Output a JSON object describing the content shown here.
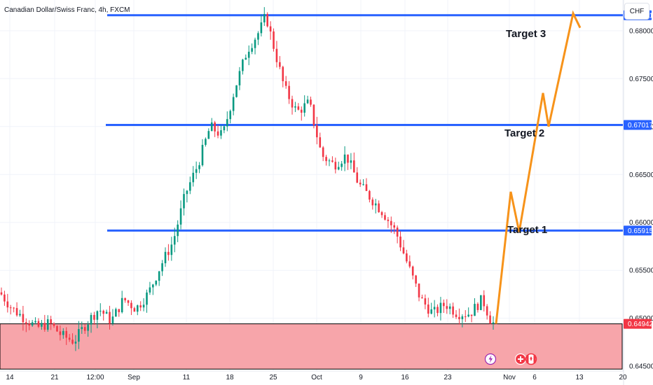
{
  "header": {
    "title": "Canadian Dollar/Swiss Franc, 4h, FXCM"
  },
  "currency_button": "CHF",
  "colors": {
    "up": "#089981",
    "down": "#f23645",
    "level": "#2962ff",
    "projection": "#f7931a",
    "zone_fill": "#f7a5aa",
    "zone_border": "#000000",
    "axis_text": "#131722",
    "grid": "#f0f3fa"
  },
  "icons": [
    "lightning-icon",
    "plus-icon",
    "canada-flag-icon"
  ],
  "chart_data": {
    "type": "candlestick",
    "title": "Canadian Dollar/Swiss Franc, 4h, FXCM",
    "ylim": [
      0.6445,
      0.6832
    ],
    "y_ticks": [
      "0.68000",
      "0.67500",
      "0.67000",
      "0.66500",
      "0.66000",
      "0.65500",
      "0.65000",
      "0.64500"
    ],
    "x_ticks": [
      "14",
      "21",
      "12:00",
      "Sep",
      "11",
      "18",
      "25",
      "Oct",
      "9",
      "16",
      "23",
      "Nov",
      "6",
      "13",
      "20"
    ],
    "path_anchors": [
      [
        0,
        0.6527
      ],
      [
        4,
        0.651
      ],
      [
        8,
        0.65
      ],
      [
        12,
        0.649
      ],
      [
        16,
        0.6495
      ],
      [
        20,
        0.6482
      ],
      [
        24,
        0.6476
      ],
      [
        28,
        0.6495
      ],
      [
        32,
        0.651
      ],
      [
        36,
        0.6497
      ],
      [
        40,
        0.652
      ],
      [
        44,
        0.651
      ],
      [
        48,
        0.6526
      ],
      [
        52,
        0.6555
      ],
      [
        56,
        0.658
      ],
      [
        60,
        0.663
      ],
      [
        64,
        0.666
      ],
      [
        68,
        0.67
      ],
      [
        72,
        0.669
      ],
      [
        76,
        0.674
      ],
      [
        80,
        0.678
      ],
      [
        84,
        0.68
      ],
      [
        86,
        0.6816
      ],
      [
        88,
        0.679
      ],
      [
        92,
        0.674
      ],
      [
        96,
        0.6715
      ],
      [
        100,
        0.6725
      ],
      [
        104,
        0.667
      ],
      [
        108,
        0.666
      ],
      [
        112,
        0.667
      ],
      [
        116,
        0.664
      ],
      [
        120,
        0.6625
      ],
      [
        124,
        0.661
      ],
      [
        128,
        0.659
      ],
      [
        132,
        0.6555
      ],
      [
        136,
        0.652
      ],
      [
        140,
        0.6505
      ],
      [
        144,
        0.6515
      ],
      [
        148,
        0.6505
      ],
      [
        152,
        0.6505
      ],
      [
        156,
        0.652
      ],
      [
        159,
        0.6495
      ]
    ],
    "levels": [
      {
        "value": 0.68161,
        "label": "0.68161",
        "target": "Target 3"
      },
      {
        "value": 0.67017,
        "label": "0.67017",
        "target": "Target 2"
      },
      {
        "value": 0.65915,
        "label": "0.65915",
        "target": "Target 1"
      }
    ],
    "zone": {
      "top": 0.64942,
      "bottom": 0.6447,
      "label": "0.64942"
    },
    "projection": [
      [
        0.64942,
        0
      ],
      [
        0.6632,
        1
      ],
      [
        0.659,
        2
      ],
      [
        0.6735,
        3
      ],
      [
        0.67,
        4
      ],
      [
        0.6818,
        5
      ],
      [
        0.6803,
        6
      ]
    ]
  }
}
